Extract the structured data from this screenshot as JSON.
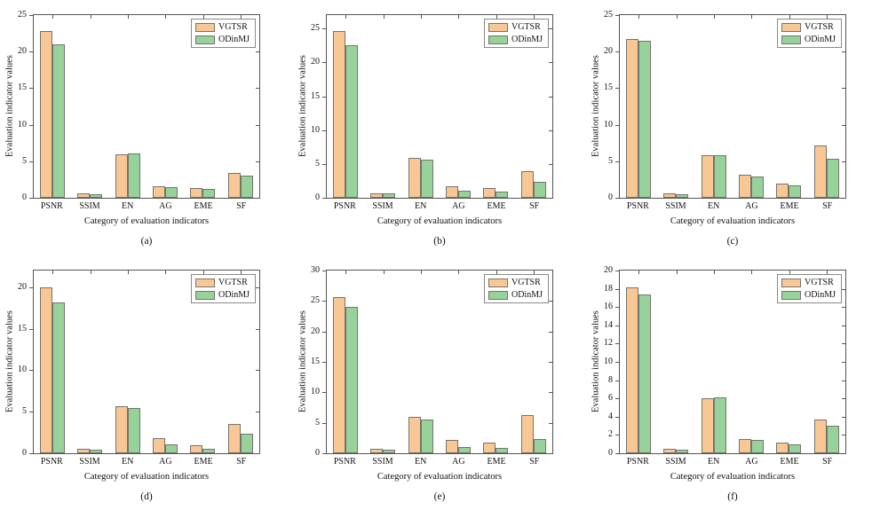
{
  "figure": {
    "ylabel": "Evaluation indicator values",
    "xlabel": "Category of evaluation indicators",
    "categories": [
      "PSNR",
      "SSIM",
      "EN",
      "AG",
      "EME",
      "SF"
    ],
    "legend": [
      "VGTSR",
      "ODinMJ"
    ],
    "colors": {
      "vgtsr_fill": "#F8C794",
      "odinmj_fill": "#97D29B",
      "bar_edge": "#74746E",
      "axis": "#55554F",
      "legend_border": "#8A8A84",
      "text": "#111111"
    }
  },
  "chart_data": [
    {
      "type": "bar",
      "caption": "(a)",
      "categories": [
        "PSNR",
        "SSIM",
        "EN",
        "AG",
        "EME",
        "SF"
      ],
      "series": [
        {
          "name": "VGTSR",
          "values": [
            22.8,
            0.65,
            5.9,
            1.6,
            1.35,
            3.4
          ]
        },
        {
          "name": "ODinMJ",
          "values": [
            21.0,
            0.5,
            6.1,
            1.5,
            1.25,
            3.05
          ]
        }
      ],
      "xlabel": "Category of evaluation indicators",
      "ylabel": "Evaluation indicator values",
      "ylim": [
        0,
        25
      ],
      "yticks": [
        0,
        5,
        10,
        15,
        20,
        25
      ],
      "legend_position": "top-right"
    },
    {
      "type": "bar",
      "caption": "(b)",
      "categories": [
        "PSNR",
        "SSIM",
        "EN",
        "AG",
        "EME",
        "SF"
      ],
      "series": [
        {
          "name": "VGTSR",
          "values": [
            24.7,
            0.7,
            5.9,
            1.7,
            1.45,
            3.9
          ]
        },
        {
          "name": "ODinMJ",
          "values": [
            22.6,
            0.6,
            5.7,
            1.1,
            0.9,
            2.3
          ]
        }
      ],
      "xlabel": "Category of evaluation indicators",
      "ylabel": "Evaluation indicator values",
      "ylim": [
        0,
        27
      ],
      "yticks": [
        0,
        5,
        10,
        15,
        20,
        25
      ],
      "legend_position": "top-right"
    },
    {
      "type": "bar",
      "caption": "(c)",
      "categories": [
        "PSNR",
        "SSIM",
        "EN",
        "AG",
        "EME",
        "SF"
      ],
      "series": [
        {
          "name": "VGTSR",
          "values": [
            21.7,
            0.6,
            5.8,
            3.1,
            2.0,
            7.2
          ]
        },
        {
          "name": "ODinMJ",
          "values": [
            21.5,
            0.5,
            5.8,
            2.9,
            1.75,
            5.3
          ]
        }
      ],
      "xlabel": "Category of evaluation indicators",
      "ylabel": "Evaluation indicator values",
      "ylim": [
        0,
        25
      ],
      "yticks": [
        0,
        5,
        10,
        15,
        20,
        25
      ],
      "legend_position": "top-right"
    },
    {
      "type": "bar",
      "caption": "(d)",
      "categories": [
        "PSNR",
        "SSIM",
        "EN",
        "AG",
        "EME",
        "SF"
      ],
      "series": [
        {
          "name": "VGTSR",
          "values": [
            20.0,
            0.5,
            5.7,
            1.8,
            1.0,
            3.5
          ]
        },
        {
          "name": "ODinMJ",
          "values": [
            18.2,
            0.4,
            5.4,
            1.1,
            0.5,
            2.4
          ]
        }
      ],
      "xlabel": "Category of evaluation indicators",
      "ylabel": "Evaluation indicator values",
      "ylim": [
        0,
        22
      ],
      "yticks": [
        0,
        5,
        10,
        15,
        20
      ],
      "legend_position": "top-right"
    },
    {
      "type": "bar",
      "caption": "(e)",
      "categories": [
        "PSNR",
        "SSIM",
        "EN",
        "AG",
        "EME",
        "SF"
      ],
      "series": [
        {
          "name": "VGTSR",
          "values": [
            25.6,
            0.75,
            5.9,
            2.2,
            1.8,
            6.2
          ]
        },
        {
          "name": "ODinMJ",
          "values": [
            24.0,
            0.65,
            5.6,
            1.0,
            0.85,
            2.3
          ]
        }
      ],
      "xlabel": "Category of evaluation indicators",
      "ylabel": "Evaluation indicator values",
      "ylim": [
        0,
        30
      ],
      "yticks": [
        0,
        5,
        10,
        15,
        20,
        25,
        30
      ],
      "legend_position": "top-right"
    },
    {
      "type": "bar",
      "caption": "(f)",
      "categories": [
        "PSNR",
        "SSIM",
        "EN",
        "AG",
        "EME",
        "SF"
      ],
      "series": [
        {
          "name": "VGTSR",
          "values": [
            18.2,
            0.45,
            6.0,
            1.6,
            1.2,
            3.7
          ]
        },
        {
          "name": "ODinMJ",
          "values": [
            17.4,
            0.4,
            6.1,
            1.5,
            1.0,
            3.0
          ]
        }
      ],
      "xlabel": "Category of evaluation indicators",
      "ylabel": "Evaluation indicator values",
      "ylim": [
        0,
        20
      ],
      "yticks": [
        0,
        2,
        4,
        6,
        8,
        10,
        12,
        14,
        16,
        18,
        20
      ],
      "legend_position": "top-right"
    }
  ]
}
